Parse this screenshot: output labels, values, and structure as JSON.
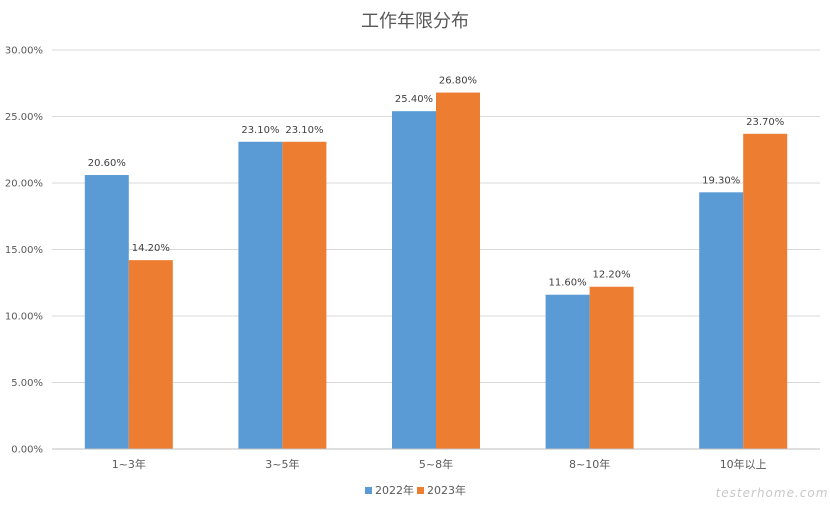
{
  "watermark": "testerhome.com",
  "colors": {
    "series_2022": "#5B9BD5",
    "series_2023": "#ED7D31",
    "grid": "#D9D9D9",
    "axis": "#BFBFBF"
  },
  "chart_data": {
    "type": "bar",
    "title": "工作年限分布",
    "xlabel": "",
    "ylabel": "",
    "ylim": [
      0,
      30
    ],
    "y_ticks": [
      {
        "value": 0,
        "label": "0.00%"
      },
      {
        "value": 5,
        "label": "5.00%"
      },
      {
        "value": 10,
        "label": "10.00%"
      },
      {
        "value": 15,
        "label": "15.00%"
      },
      {
        "value": 20,
        "label": "20.00%"
      },
      {
        "value": 25,
        "label": "25.00%"
      },
      {
        "value": 30,
        "label": "30.00%"
      }
    ],
    "grid": true,
    "legend_position": "bottom",
    "categories": [
      "1~3年",
      "3~5年",
      "5~8年",
      "8~10年",
      "10年以上"
    ],
    "series": [
      {
        "name": "2022年",
        "values": [
          20.6,
          23.1,
          25.4,
          11.6,
          19.3
        ],
        "labels": [
          "20.60%",
          "23.10%",
          "25.40%",
          "11.60%",
          "19.30%"
        ]
      },
      {
        "name": "2023年",
        "values": [
          14.2,
          23.1,
          26.8,
          12.2,
          23.7
        ],
        "labels": [
          "14.20%",
          "23.10%",
          "26.80%",
          "12.20%",
          "23.70%"
        ]
      }
    ]
  }
}
